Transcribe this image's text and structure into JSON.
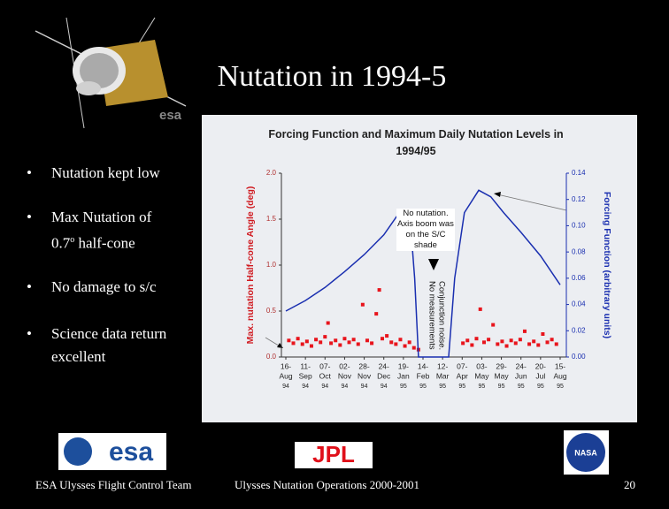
{
  "slide": {
    "title": "Nutation in 1994-5",
    "satellite_label": "esa",
    "bullets": [
      {
        "text": "Nutation kept low"
      },
      {
        "text": "Max Nutation of",
        "value": "0.7",
        "sup": "o",
        "rest": "half-cone"
      },
      {
        "text": "No damage to s/c"
      },
      {
        "text": "Science data return excellent"
      }
    ],
    "logos": [
      "esa",
      "JPL",
      "NASA"
    ],
    "footer": {
      "left": "ESA Ulysses Flight Control Team",
      "center": "Ulysses Nutation Operations 2000-2001",
      "page": "20"
    }
  },
  "chart_data": {
    "type": "scatter",
    "title": "Forcing Function and Maximum Daily Nutation Levels in 1994/95",
    "y_label": "Max. nutation Half-cone Angle (deg)",
    "y2_label": "Forcing Function (arbitrary units)",
    "annotations": [
      "No nutation. Axis boom was on the S/C shade",
      "Conjunction noise.",
      "No measurements"
    ],
    "xlim": [
      "1994-08-16",
      "1995-08-15"
    ],
    "xticks": [
      {
        "value": "1994-08-16",
        "label": [
          "16-",
          "Aug",
          "94"
        ]
      },
      {
        "value": "1994-09-11",
        "label": [
          "11-",
          "Sep",
          "94"
        ]
      },
      {
        "value": "1994-10-07",
        "label": [
          "07-",
          "Oct",
          "94"
        ]
      },
      {
        "value": "1994-11-02",
        "label": [
          "02-",
          "Nov",
          "94"
        ]
      },
      {
        "value": "1994-11-28",
        "label": [
          "28-",
          "Nov",
          "94"
        ]
      },
      {
        "value": "1994-12-24",
        "label": [
          "24-",
          "Dec",
          "94"
        ]
      },
      {
        "value": "1995-01-19",
        "label": [
          "19-",
          "Jan",
          "95"
        ]
      },
      {
        "value": "1995-02-14",
        "label": [
          "14-",
          "Feb",
          "95"
        ]
      },
      {
        "value": "1995-03-12",
        "label": [
          "12-",
          "Mar",
          "95"
        ]
      },
      {
        "value": "1995-04-07",
        "label": [
          "07-",
          "Apr",
          "95"
        ]
      },
      {
        "value": "1995-05-03",
        "label": [
          "03-",
          "May",
          "95"
        ]
      },
      {
        "value": "1995-05-29",
        "label": [
          "29-",
          "May",
          "95"
        ]
      },
      {
        "value": "1995-06-24",
        "label": [
          "24-",
          "Jun",
          "95"
        ]
      },
      {
        "value": "1995-07-20",
        "label": [
          "20-",
          "Jul",
          "95"
        ]
      },
      {
        "value": "1995-08-15",
        "label": [
          "15-",
          "Aug",
          "95"
        ]
      }
    ],
    "ylim": [
      0,
      2
    ],
    "yticks": [
      {
        "value": 0,
        "label": "0.0"
      },
      0.5,
      {
        "value": 1,
        "label": "1.0"
      },
      1.5,
      {
        "value": 2,
        "label": "2.0"
      }
    ],
    "y2lim": [
      0,
      0.14
    ],
    "y2ticks": [
      {
        "value": 0,
        "label": "0.00"
      },
      0.02,
      0.04,
      0.06,
      0.08,
      {
        "value": 0.1,
        "label": "0.10"
      },
      0.12,
      0.14
    ],
    "series": [
      {
        "type": "scatter",
        "color": "#e8141c",
        "x": [
          "1994-08-20",
          "1994-08-26",
          "1994-09-01",
          "1994-09-07",
          "1994-09-13",
          "1994-09-19",
          "1994-09-25",
          "1994-10-01",
          "1994-10-07",
          "1994-10-11",
          "1994-10-15",
          "1994-10-21",
          "1994-10-27",
          "1994-11-02",
          "1994-11-08",
          "1994-11-14",
          "1994-11-20",
          "1994-11-26",
          "1994-12-02",
          "1994-12-08",
          "1994-12-14",
          "1994-12-18",
          "1994-12-22",
          "1994-12-28",
          "1995-01-03",
          "1995-01-09",
          "1995-01-15",
          "1995-01-21",
          "1995-01-27",
          "1995-02-02",
          "1995-02-08",
          "1995-04-08",
          "1995-04-14",
          "1995-04-20",
          "1995-04-26",
          "1995-05-01",
          "1995-05-06",
          "1995-05-12",
          "1995-05-18",
          "1995-05-24",
          "1995-05-30",
          "1995-06-05",
          "1995-06-11",
          "1995-06-17",
          "1995-06-23",
          "1995-06-29",
          "1995-07-05",
          "1995-07-11",
          "1995-07-17",
          "1995-07-23",
          "1995-07-29",
          "1995-08-04",
          "1995-08-10"
        ],
        "values": [
          0.18,
          0.15,
          0.2,
          0.14,
          0.17,
          0.12,
          0.19,
          0.16,
          0.22,
          0.37,
          0.15,
          0.18,
          0.13,
          0.2,
          0.16,
          0.19,
          0.14,
          0.57,
          0.18,
          0.15,
          0.47,
          0.73,
          0.2,
          0.23,
          0.16,
          0.14,
          0.19,
          0.12,
          0.16,
          0.1,
          0.08,
          0.15,
          0.18,
          0.13,
          0.2,
          0.52,
          0.16,
          0.19,
          0.35,
          0.14,
          0.17,
          0.12,
          0.18,
          0.15,
          0.19,
          0.28,
          0.14,
          0.17,
          0.13,
          0.25,
          0.16,
          0.19,
          0.14
        ]
      },
      {
        "type": "line",
        "axis": "y2",
        "color": "#1a2fb0",
        "x": [
          "1994-08-16",
          "1994-09-11",
          "1994-10-07",
          "1994-11-02",
          "1994-11-28",
          "1994-12-24",
          "1995-01-10",
          "1995-01-19",
          "1995-01-28",
          "1995-02-03",
          "1995-02-08",
          "1995-03-20",
          "1995-03-28",
          "1995-04-10",
          "1995-04-29",
          "1995-05-15",
          "1995-06-01",
          "1995-06-24",
          "1995-07-20",
          "1995-08-15"
        ],
        "values": [
          0.035,
          0.043,
          0.053,
          0.065,
          0.078,
          0.093,
          0.107,
          0.112,
          0.105,
          0.06,
          0,
          0,
          0.06,
          0.11,
          0.127,
          0.122,
          0.11,
          0.095,
          0.077,
          0.055
        ]
      }
    ]
  }
}
